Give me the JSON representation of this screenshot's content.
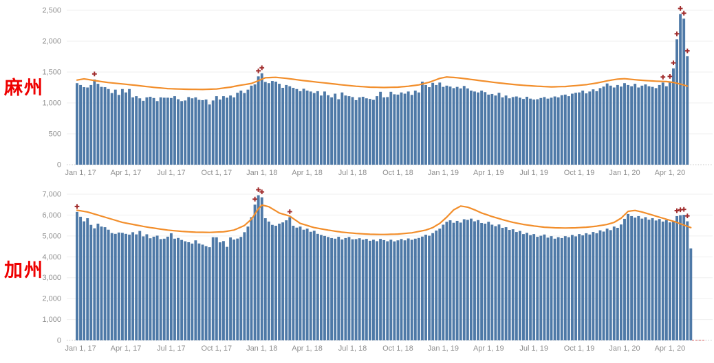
{
  "colors": {
    "bar": "#4e79a7",
    "trend_line": "#f28e2b",
    "outlier_marker": "#a02c2c",
    "state_label": "#ee0000",
    "axis_text": "#8f8f8f",
    "gridline": "#efefef",
    "gridline_zero": "#c4c4c4",
    "axis_tail_accent": "#e59a9a"
  },
  "chart_data": [
    {
      "type": "bar",
      "title": "麻州",
      "ylim": [
        0,
        2500
      ],
      "y_tick_values": [
        0,
        500,
        1000,
        1500,
        2000,
        2500
      ],
      "y_tick_labels": [
        "0",
        "500",
        "1,000",
        "1,500",
        "2,000",
        "2,500"
      ],
      "x_tick_labels": [
        "Jan 1, 17",
        "Apr 1, 17",
        "Jul 1, 17",
        "Oct 1, 17",
        "Jan 1, 18",
        "Apr 1, 18",
        "Jul 1, 18",
        "Oct 1, 18",
        "Jan 1, 19",
        "Apr 1, 19",
        "Jul 1, 19",
        "Oct 1, 19",
        "Jan 1, 20",
        "Apr 1, 20"
      ],
      "x_tick_weeks": [
        1,
        14,
        27,
        40,
        53,
        66,
        79,
        92,
        105,
        118,
        131,
        144,
        157,
        170
      ],
      "bar_values": [
        1320,
        1290,
        1255,
        1250,
        1290,
        1380,
        1310,
        1260,
        1255,
        1225,
        1160,
        1215,
        1130,
        1225,
        1170,
        1225,
        1090,
        1110,
        1075,
        1035,
        1090,
        1100,
        1080,
        1030,
        1090,
        1085,
        1085,
        1080,
        1110,
        1060,
        1030,
        1040,
        1095,
        1075,
        1090,
        1050,
        1045,
        1055,
        975,
        1040,
        1110,
        1055,
        1110,
        1085,
        1120,
        1090,
        1165,
        1200,
        1160,
        1215,
        1280,
        1300,
        1430,
        1480,
        1340,
        1320,
        1355,
        1345,
        1310,
        1245,
        1290,
        1270,
        1245,
        1225,
        1190,
        1230,
        1200,
        1185,
        1160,
        1190,
        1120,
        1185,
        1125,
        1090,
        1150,
        1060,
        1170,
        1120,
        1110,
        1095,
        1045,
        1090,
        1100,
        1075,
        1065,
        1050,
        1110,
        1180,
        1090,
        1095,
        1180,
        1140,
        1135,
        1170,
        1150,
        1185,
        1130,
        1200,
        1170,
        1345,
        1290,
        1255,
        1325,
        1290,
        1330,
        1260,
        1280,
        1265,
        1240,
        1260,
        1235,
        1275,
        1235,
        1200,
        1185,
        1170,
        1200,
        1175,
        1135,
        1145,
        1120,
        1165,
        1090,
        1120,
        1075,
        1095,
        1105,
        1085,
        1065,
        1100,
        1070,
        1055,
        1060,
        1080,
        1095,
        1070,
        1085,
        1105,
        1090,
        1125,
        1135,
        1110,
        1150,
        1165,
        1170,
        1200,
        1155,
        1185,
        1220,
        1190,
        1240,
        1265,
        1315,
        1280,
        1250,
        1290,
        1265,
        1320,
        1290,
        1270,
        1310,
        1250,
        1280,
        1300,
        1270,
        1260,
        1240,
        1290,
        1330,
        1270,
        1340,
        1560,
        2030,
        2440,
        2365,
        1755
      ],
      "outlier_weeks": [
        5,
        52,
        53,
        168,
        170,
        171,
        172,
        173,
        174,
        175
      ],
      "trend_line_anchors": [
        [
          0,
          1370
        ],
        [
          2,
          1390
        ],
        [
          5,
          1362
        ],
        [
          9,
          1330
        ],
        [
          13,
          1308
        ],
        [
          18,
          1278
        ],
        [
          22,
          1252
        ],
        [
          26,
          1232
        ],
        [
          31,
          1222
        ],
        [
          36,
          1218
        ],
        [
          40,
          1226
        ],
        [
          44,
          1256
        ],
        [
          47,
          1288
        ],
        [
          50,
          1315
        ],
        [
          52,
          1360
        ],
        [
          54,
          1408
        ],
        [
          57,
          1415
        ],
        [
          60,
          1398
        ],
        [
          64,
          1368
        ],
        [
          68,
          1342
        ],
        [
          72,
          1318
        ],
        [
          76,
          1292
        ],
        [
          80,
          1270
        ],
        [
          84,
          1256
        ],
        [
          88,
          1250
        ],
        [
          92,
          1256
        ],
        [
          95,
          1270
        ],
        [
          98,
          1292
        ],
        [
          101,
          1335
        ],
        [
          104,
          1398
        ],
        [
          106,
          1420
        ],
        [
          109,
          1408
        ],
        [
          112,
          1388
        ],
        [
          116,
          1358
        ],
        [
          120,
          1330
        ],
        [
          124,
          1305
        ],
        [
          128,
          1285
        ],
        [
          132,
          1270
        ],
        [
          136,
          1260
        ],
        [
          140,
          1266
        ],
        [
          143,
          1280
        ],
        [
          146,
          1296
        ],
        [
          149,
          1322
        ],
        [
          152,
          1358
        ],
        [
          155,
          1386
        ],
        [
          157,
          1392
        ],
        [
          160,
          1376
        ],
        [
          163,
          1362
        ],
        [
          166,
          1352
        ],
        [
          169,
          1346
        ],
        [
          171,
          1332
        ],
        [
          173,
          1305
        ],
        [
          175,
          1272
        ]
      ],
      "axis_tail_accent": false
    },
    {
      "type": "bar",
      "title": "加州",
      "ylim": [
        0,
        7000
      ],
      "y_tick_values": [
        0,
        1000,
        2000,
        3000,
        4000,
        5000,
        6000,
        7000
      ],
      "y_tick_labels": [
        "0",
        "1,000",
        "2,000",
        "3,000",
        "4,000",
        "5,000",
        "6,000",
        "7,000"
      ],
      "x_tick_labels": [
        "Jan 1, 17",
        "Apr 1, 17",
        "Jul 1, 17",
        "Oct 1, 17",
        "Jan 1, 18",
        "Apr 1, 18",
        "Jul 1, 18",
        "Oct 1, 18",
        "Jan 1, 19",
        "Apr 1, 19",
        "Jul 1, 19",
        "Oct 1, 19",
        "Jan 1, 20",
        "Apr 1, 20"
      ],
      "x_tick_weeks": [
        1,
        14,
        27,
        40,
        53,
        66,
        79,
        92,
        105,
        118,
        131,
        144,
        157,
        170
      ],
      "bar_values": [
        6150,
        5920,
        5700,
        5850,
        5530,
        5365,
        5590,
        5450,
        5420,
        5300,
        5140,
        5100,
        5165,
        5150,
        5100,
        5065,
        5180,
        5075,
        5240,
        4980,
        5080,
        4890,
        4965,
        5015,
        4850,
        4870,
        4965,
        5130,
        4870,
        4905,
        4810,
        4745,
        4700,
        4635,
        4790,
        4640,
        4585,
        4510,
        4465,
        4940,
        4935,
        4695,
        4755,
        4480,
        4930,
        4825,
        4875,
        4955,
        5180,
        5450,
        5900,
        6500,
        6950,
        6850,
        5850,
        5690,
        5530,
        5490,
        5590,
        5650,
        5750,
        5900,
        5490,
        5400,
        5450,
        5300,
        5350,
        5200,
        5250,
        5100,
        5050,
        5000,
        4950,
        4900,
        4870,
        4960,
        4830,
        4900,
        4950,
        4840,
        4850,
        4890,
        4820,
        4860,
        4770,
        4820,
        4750,
        4860,
        4800,
        4745,
        4820,
        4740,
        4790,
        4855,
        4790,
        4880,
        4815,
        4870,
        4905,
        4970,
        5060,
        5010,
        5135,
        5260,
        5350,
        5540,
        5680,
        5750,
        5630,
        5720,
        5640,
        5800,
        5770,
        5830,
        5700,
        5760,
        5620,
        5590,
        5680,
        5540,
        5470,
        5550,
        5390,
        5420,
        5290,
        5320,
        5190,
        5240,
        5090,
        5150,
        5040,
        5090,
        4960,
        5010,
        5070,
        4920,
        4990,
        4870,
        4940,
        4900,
        4990,
        4940,
        5050,
        4980,
        5090,
        5030,
        5130,
        5070,
        5190,
        5130,
        5270,
        5210,
        5350,
        5280,
        5450,
        5390,
        5550,
        5820,
        6050,
        5950,
        5880,
        5950,
        5830,
        5900,
        5780,
        5850,
        5740,
        5810,
        5690,
        5760,
        5650,
        5720,
        5950,
        5990,
        6010,
        5700,
        4400
      ],
      "outlier_weeks": [
        0,
        51,
        52,
        53,
        61,
        172,
        173,
        174,
        175
      ],
      "trend_line_anchors": [
        [
          0,
          6230
        ],
        [
          3,
          6150
        ],
        [
          6,
          6000
        ],
        [
          9,
          5850
        ],
        [
          13,
          5650
        ],
        [
          17,
          5520
        ],
        [
          21,
          5400
        ],
        [
          26,
          5280
        ],
        [
          30,
          5220
        ],
        [
          34,
          5180
        ],
        [
          38,
          5170
        ],
        [
          42,
          5200
        ],
        [
          45,
          5280
        ],
        [
          48,
          5500
        ],
        [
          50,
          5800
        ],
        [
          52,
          6300
        ],
        [
          53,
          6480
        ],
        [
          55,
          6400
        ],
        [
          58,
          6100
        ],
        [
          61,
          5950
        ],
        [
          64,
          5600
        ],
        [
          68,
          5400
        ],
        [
          72,
          5280
        ],
        [
          76,
          5180
        ],
        [
          80,
          5120
        ],
        [
          84,
          5080
        ],
        [
          88,
          5070
        ],
        [
          92,
          5090
        ],
        [
          96,
          5150
        ],
        [
          100,
          5280
        ],
        [
          102,
          5400
        ],
        [
          104,
          5600
        ],
        [
          106,
          5900
        ],
        [
          108,
          6250
        ],
        [
          110,
          6430
        ],
        [
          112,
          6380
        ],
        [
          114,
          6250
        ],
        [
          116,
          6100
        ],
        [
          119,
          5930
        ],
        [
          122,
          5780
        ],
        [
          125,
          5650
        ],
        [
          128,
          5550
        ],
        [
          131,
          5480
        ],
        [
          134,
          5420
        ],
        [
          137,
          5390
        ],
        [
          140,
          5380
        ],
        [
          143,
          5390
        ],
        [
          146,
          5420
        ],
        [
          149,
          5470
        ],
        [
          152,
          5550
        ],
        [
          154,
          5650
        ],
        [
          156,
          5850
        ],
        [
          158,
          6180
        ],
        [
          160,
          6220
        ],
        [
          162,
          6150
        ],
        [
          164,
          6050
        ],
        [
          166,
          5950
        ],
        [
          168,
          5850
        ],
        [
          170,
          5750
        ],
        [
          172,
          5650
        ],
        [
          174,
          5520
        ],
        [
          176,
          5400
        ]
      ],
      "axis_tail_accent": true
    }
  ]
}
